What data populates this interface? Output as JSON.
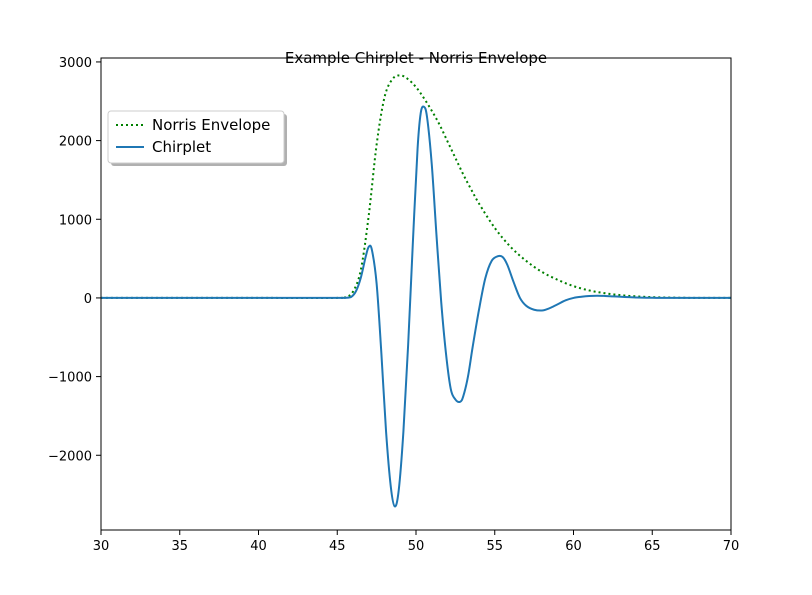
{
  "chart_data": {
    "type": "line",
    "title": "Example Chirplet - Norris Envelope",
    "xlabel": "",
    "ylabel": "",
    "xlim": [
      30,
      70
    ],
    "ylim": [
      -2950,
      3050
    ],
    "x_ticks": [
      30,
      35,
      40,
      45,
      50,
      55,
      60,
      65,
      70
    ],
    "y_ticks": [
      -2000,
      -1000,
      0,
      1000,
      2000,
      3000
    ],
    "y_tick_labels": [
      "−2000",
      "−1000",
      "0",
      "1000",
      "2000",
      "3000"
    ],
    "grid": false,
    "legend": {
      "placement": "upper-left",
      "entries": [
        "Norris Envelope",
        "Chirplet"
      ]
    },
    "series": [
      {
        "name": "Norris Envelope",
        "style": "dotted",
        "color": "#008000",
        "x": [
          30,
          40,
          45,
          45.5,
          46,
          46.5,
          47,
          47.5,
          48,
          48.5,
          49,
          49.5,
          50,
          50.5,
          51,
          51.5,
          52,
          52.5,
          53,
          53.5,
          54,
          55,
          56,
          57,
          58,
          59,
          60,
          61,
          62,
          63,
          64,
          65,
          66,
          67,
          68,
          70
        ],
        "y": [
          0,
          0,
          0,
          8,
          80,
          360,
          1050,
          1950,
          2550,
          2780,
          2830,
          2780,
          2680,
          2540,
          2380,
          2200,
          1990,
          1780,
          1570,
          1380,
          1200,
          890,
          650,
          470,
          330,
          230,
          150,
          95,
          60,
          35,
          20,
          10,
          5,
          2,
          1,
          0
        ]
      },
      {
        "name": "Chirplet",
        "style": "solid",
        "color": "#1f77b4",
        "x": [
          30,
          40,
          45,
          45.5,
          45.9,
          46.2,
          46.5,
          46.8,
          47.0,
          47.2,
          47.5,
          47.8,
          48.1,
          48.4,
          48.65,
          48.9,
          49.2,
          49.5,
          49.8,
          50.1,
          50.3,
          50.5,
          50.7,
          51.0,
          51.3,
          51.6,
          51.9,
          52.2,
          52.5,
          52.8,
          53.0,
          53.3,
          53.6,
          54.0,
          54.4,
          54.8,
          55.2,
          55.5,
          55.8,
          56.2,
          56.6,
          57.0,
          57.5,
          58.0,
          58.3,
          58.6,
          59.0,
          59.5,
          60.0,
          60.5,
          61.0,
          61.5,
          62.0,
          62.5,
          63.0,
          63.5,
          64.0,
          65.0,
          66.0,
          68.0,
          70.0
        ],
        "y": [
          0,
          0,
          0,
          2,
          15,
          90,
          260,
          520,
          650,
          610,
          180,
          -700,
          -1700,
          -2400,
          -2650,
          -2450,
          -1700,
          -600,
          700,
          1900,
          2350,
          2430,
          2300,
          1700,
          800,
          -50,
          -700,
          -1150,
          -1290,
          -1320,
          -1250,
          -1000,
          -620,
          -150,
          250,
          470,
          530,
          520,
          420,
          200,
          0,
          -100,
          -150,
          -160,
          -145,
          -120,
          -80,
          -30,
          0,
          15,
          25,
          28,
          25,
          20,
          15,
          10,
          5,
          2,
          0,
          0,
          0
        ]
      }
    ]
  }
}
